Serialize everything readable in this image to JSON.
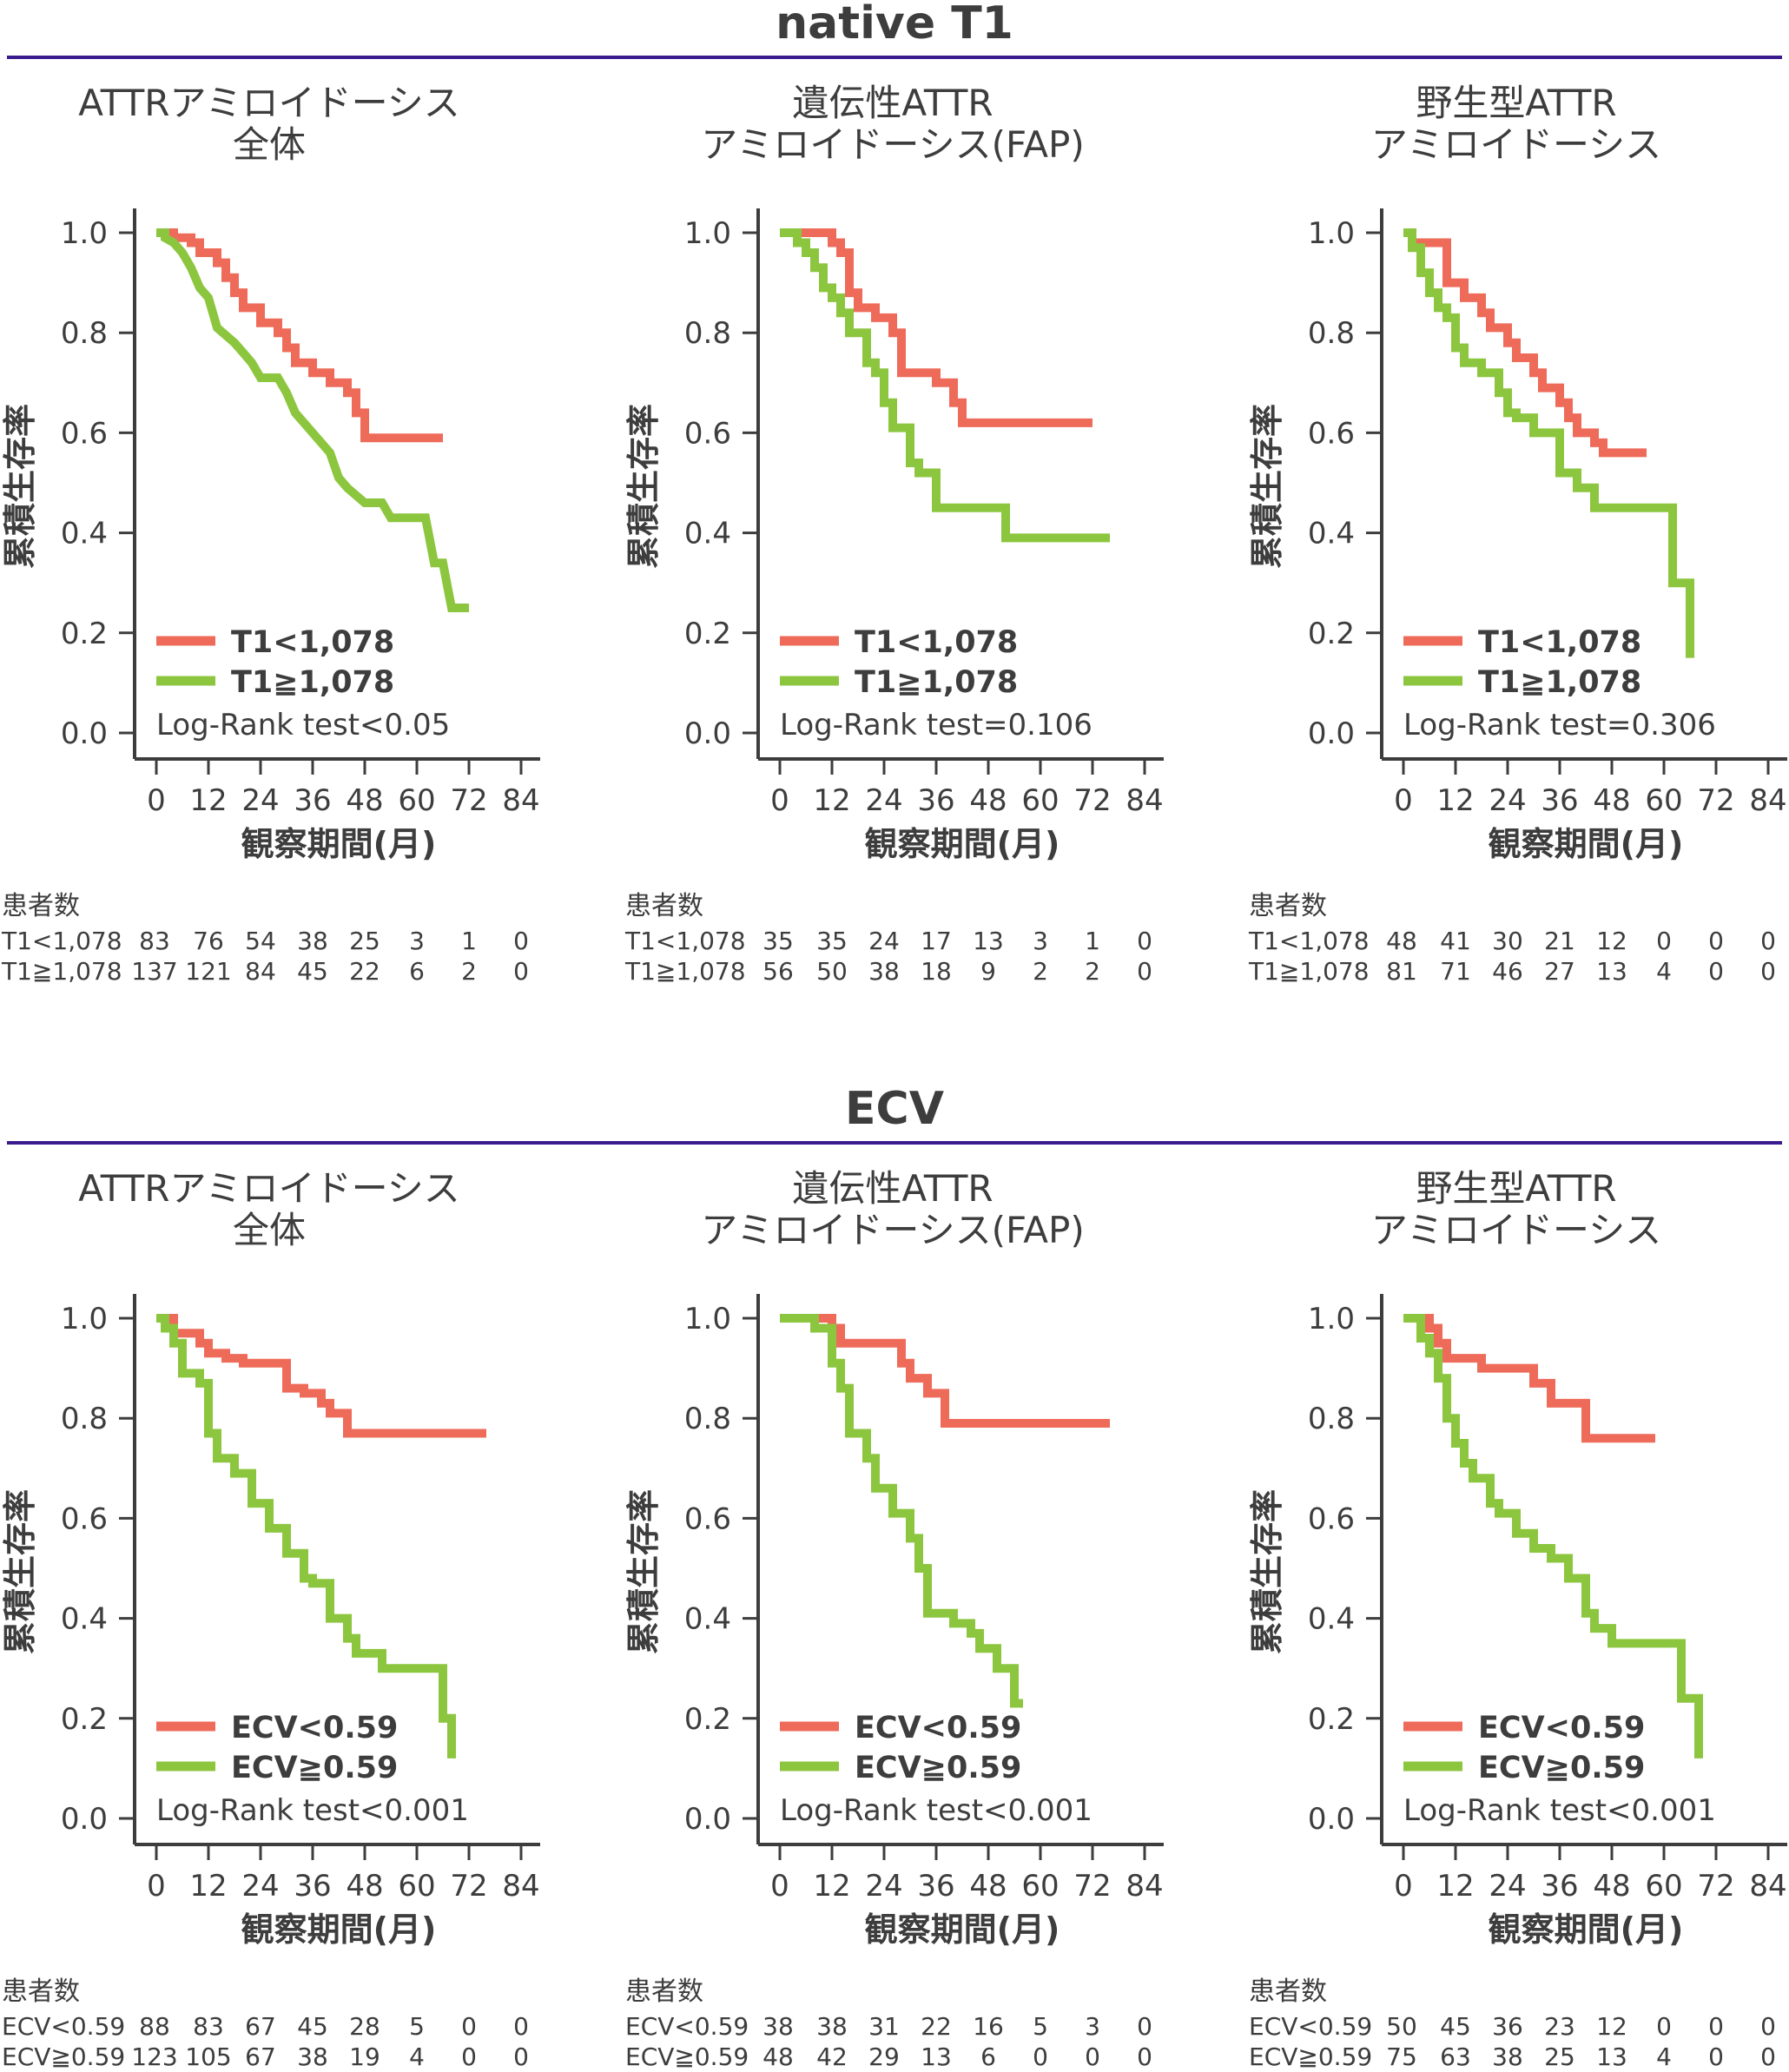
{
  "colors": {
    "red": "#ee6b5a",
    "green": "#8cc63f",
    "axis": "#3d3d3d",
    "rule": "#3a1a8c"
  },
  "x_ticks": [
    0,
    12,
    24,
    36,
    48,
    60,
    72,
    84
  ],
  "y_ticks": [
    "1.0",
    "0.8",
    "0.6",
    "0.4",
    "0.2",
    "0.0"
  ],
  "xlabel": "観察期間(月)",
  "ylabel": "累積生存率",
  "risk_header": "患者数",
  "sections": [
    {
      "title": "native T1",
      "legend": [
        "T1<1,078",
        "T1≧1,078"
      ],
      "risk_labels": [
        "T1<1,078",
        "T1≧1,078"
      ],
      "panels": [
        {
          "title_lines": [
            "ATTRアミロイドーシス",
            "全体"
          ],
          "logrank": "Log-Rank test<0.05",
          "risk": [
            [
              "83",
              "76",
              "54",
              "38",
              "25",
              "3",
              "1",
              "0"
            ],
            [
              "137",
              "121",
              "84",
              "45",
              "22",
              "6",
              "2",
              "0"
            ]
          ]
        },
        {
          "title_lines": [
            "遺伝性ATTR",
            "アミロイドーシス(FAP)"
          ],
          "logrank": "Log-Rank test=0.106",
          "risk": [
            [
              "35",
              "35",
              "24",
              "17",
              "13",
              "3",
              "1",
              "0"
            ],
            [
              "56",
              "50",
              "38",
              "18",
              "9",
              "2",
              "2",
              "0"
            ]
          ]
        },
        {
          "title_lines": [
            "野生型ATTR",
            "アミロイドーシス"
          ],
          "logrank": "Log-Rank test=0.306",
          "risk": [
            [
              "48",
              "41",
              "30",
              "21",
              "12",
              "0",
              "0",
              "0"
            ],
            [
              "81",
              "71",
              "46",
              "27",
              "13",
              "4",
              "0",
              "0"
            ]
          ]
        }
      ]
    },
    {
      "title": "ECV",
      "legend": [
        "ECV<0.59",
        "ECV≧0.59"
      ],
      "risk_labels": [
        "ECV<0.59",
        "ECV≧0.59"
      ],
      "panels": [
        {
          "title_lines": [
            "ATTRアミロイドーシス",
            "全体"
          ],
          "logrank": "Log-Rank test<0.001",
          "risk": [
            [
              "88",
              "83",
              "67",
              "45",
              "28",
              "5",
              "0",
              "0"
            ],
            [
              "123",
              "105",
              "67",
              "38",
              "19",
              "4",
              "0",
              "0"
            ]
          ]
        },
        {
          "title_lines": [
            "遺伝性ATTR",
            "アミロイドーシス(FAP)"
          ],
          "logrank": "Log-Rank test<0.001",
          "risk": [
            [
              "38",
              "38",
              "31",
              "22",
              "16",
              "5",
              "3",
              "0"
            ],
            [
              "48",
              "42",
              "29",
              "13",
              "6",
              "0",
              "0",
              "0"
            ]
          ]
        },
        {
          "title_lines": [
            "野生型ATTR",
            "アミロイドーシス"
          ],
          "logrank": "Log-Rank test<0.001",
          "risk": [
            [
              "50",
              "45",
              "36",
              "23",
              "12",
              "0",
              "0",
              "0"
            ],
            [
              "75",
              "63",
              "38",
              "25",
              "13",
              "4",
              "0",
              "0"
            ]
          ]
        }
      ]
    }
  ],
  "chart_data": [
    {
      "type": "line",
      "title": "ATTRアミロイドーシス 全体 (native T1)",
      "xlabel": "観察期間(月)",
      "ylabel": "累積生存率",
      "xlim": [
        0,
        84
      ],
      "ylim": [
        0,
        1
      ],
      "series": [
        {
          "name": "T1<1,078",
          "x": [
            0,
            4,
            4,
            8,
            8,
            10,
            10,
            14,
            14,
            16,
            16,
            18,
            18,
            20,
            20,
            24,
            24,
            28,
            28,
            30,
            30,
            32,
            32,
            36,
            36,
            40,
            40,
            44,
            44,
            46,
            46,
            48,
            48,
            52,
            52,
            60,
            60,
            66
          ],
          "y": [
            1.0,
            1.0,
            0.99,
            0.99,
            0.98,
            0.98,
            0.96,
            0.96,
            0.94,
            0.94,
            0.91,
            0.91,
            0.88,
            0.88,
            0.85,
            0.85,
            0.82,
            0.82,
            0.8,
            0.8,
            0.77,
            0.77,
            0.74,
            0.74,
            0.72,
            0.72,
            0.7,
            0.7,
            0.68,
            0.68,
            0.64,
            0.64,
            0.59,
            0.59,
            0.59,
            0.59,
            0.59,
            0.59
          ]
        },
        {
          "name": "T1≧1,078",
          "x": [
            0,
            2,
            2,
            4,
            6,
            8,
            10,
            12,
            14,
            18,
            20,
            22,
            24,
            28,
            30,
            32,
            34,
            36,
            38,
            40,
            42,
            44,
            48,
            50,
            52,
            54,
            58,
            60,
            62,
            64,
            66,
            68,
            72
          ],
          "y": [
            1.0,
            1.0,
            0.99,
            0.98,
            0.96,
            0.93,
            0.89,
            0.87,
            0.81,
            0.78,
            0.76,
            0.74,
            0.71,
            0.71,
            0.68,
            0.64,
            0.62,
            0.6,
            0.58,
            0.56,
            0.51,
            0.49,
            0.46,
            0.46,
            0.46,
            0.43,
            0.43,
            0.43,
            0.43,
            0.34,
            0.34,
            0.25,
            0.25
          ]
        }
      ]
    },
    {
      "type": "line",
      "title": "遺伝性ATTR アミロイドーシス(FAP) (native T1)",
      "xlabel": "観察期間(月)",
      "ylabel": "累積生存率",
      "xlim": [
        0,
        84
      ],
      "ylim": [
        0,
        1
      ],
      "series": [
        {
          "name": "T1<1,078",
          "x": [
            0,
            6,
            6,
            12,
            12,
            14,
            14,
            16,
            16,
            18,
            18,
            22,
            22,
            26,
            26,
            28,
            28,
            36,
            36,
            40,
            40,
            42,
            42,
            72
          ],
          "y": [
            1.0,
            1.0,
            1.0,
            1.0,
            0.98,
            0.98,
            0.96,
            0.96,
            0.88,
            0.88,
            0.85,
            0.85,
            0.83,
            0.83,
            0.8,
            0.8,
            0.72,
            0.72,
            0.7,
            0.7,
            0.66,
            0.66,
            0.62,
            0.62
          ]
        },
        {
          "name": "T1≧1,078",
          "x": [
            0,
            4,
            4,
            6,
            6,
            8,
            8,
            10,
            10,
            12,
            12,
            14,
            14,
            16,
            16,
            20,
            20,
            22,
            22,
            24,
            24,
            26,
            26,
            30,
            30,
            32,
            32,
            36,
            36,
            40,
            40,
            44,
            44,
            52,
            52,
            76
          ],
          "y": [
            1.0,
            1.0,
            0.98,
            0.98,
            0.96,
            0.96,
            0.93,
            0.93,
            0.89,
            0.89,
            0.87,
            0.87,
            0.84,
            0.84,
            0.8,
            0.8,
            0.74,
            0.74,
            0.72,
            0.72,
            0.66,
            0.66,
            0.61,
            0.61,
            0.54,
            0.54,
            0.52,
            0.52,
            0.45,
            0.45,
            0.45,
            0.45,
            0.45,
            0.45,
            0.39,
            0.39
          ]
        }
      ]
    },
    {
      "type": "line",
      "title": "野生型ATTR アミロイドーシス (native T1)",
      "xlabel": "観察期間(月)",
      "ylabel": "累積生存率",
      "xlim": [
        0,
        84
      ],
      "ylim": [
        0,
        1
      ],
      "series": [
        {
          "name": "T1<1,078",
          "x": [
            0,
            2,
            2,
            10,
            10,
            14,
            14,
            18,
            18,
            20,
            20,
            24,
            24,
            26,
            26,
            30,
            30,
            32,
            32,
            36,
            36,
            38,
            38,
            40,
            40,
            44,
            44,
            46,
            46,
            50,
            50,
            56
          ],
          "y": [
            1.0,
            1.0,
            0.98,
            0.98,
            0.9,
            0.9,
            0.87,
            0.87,
            0.84,
            0.84,
            0.81,
            0.81,
            0.78,
            0.78,
            0.75,
            0.75,
            0.72,
            0.72,
            0.69,
            0.69,
            0.66,
            0.66,
            0.63,
            0.63,
            0.6,
            0.6,
            0.58,
            0.58,
            0.56,
            0.56,
            0.56,
            0.56
          ]
        },
        {
          "name": "T1≧1,078",
          "x": [
            0,
            2,
            2,
            4,
            4,
            6,
            6,
            8,
            8,
            10,
            10,
            12,
            12,
            14,
            14,
            18,
            18,
            22,
            22,
            24,
            24,
            26,
            26,
            30,
            30,
            36,
            36,
            40,
            40,
            44,
            44,
            62,
            62,
            66,
            66
          ],
          "y": [
            1.0,
            1.0,
            0.97,
            0.97,
            0.92,
            0.92,
            0.88,
            0.88,
            0.85,
            0.85,
            0.83,
            0.83,
            0.77,
            0.77,
            0.74,
            0.74,
            0.72,
            0.72,
            0.68,
            0.68,
            0.64,
            0.64,
            0.63,
            0.63,
            0.6,
            0.6,
            0.52,
            0.52,
            0.49,
            0.49,
            0.45,
            0.45,
            0.3,
            0.3,
            0.15
          ]
        }
      ]
    },
    {
      "type": "line",
      "title": "ATTRアミロイドーシス 全体 (ECV)",
      "xlabel": "観察期間(月)",
      "ylabel": "累積生存率",
      "xlim": [
        0,
        84
      ],
      "ylim": [
        0,
        1
      ],
      "series": [
        {
          "name": "ECV<0.59",
          "x": [
            0,
            4,
            4,
            10,
            10,
            12,
            12,
            16,
            16,
            20,
            20,
            30,
            30,
            34,
            34,
            38,
            38,
            40,
            40,
            44,
            44,
            76
          ],
          "y": [
            1.0,
            1.0,
            0.97,
            0.97,
            0.95,
            0.95,
            0.93,
            0.93,
            0.92,
            0.92,
            0.91,
            0.91,
            0.86,
            0.86,
            0.85,
            0.85,
            0.83,
            0.83,
            0.81,
            0.81,
            0.77,
            0.77
          ]
        },
        {
          "name": "ECV≧0.59",
          "x": [
            0,
            2,
            2,
            4,
            4,
            6,
            6,
            10,
            10,
            12,
            12,
            14,
            14,
            18,
            18,
            22,
            22,
            26,
            26,
            30,
            30,
            34,
            34,
            36,
            36,
            40,
            40,
            44,
            44,
            46,
            46,
            52,
            52,
            58,
            58,
            66,
            66,
            68,
            68
          ],
          "y": [
            1.0,
            1.0,
            0.98,
            0.98,
            0.95,
            0.95,
            0.89,
            0.89,
            0.87,
            0.87,
            0.77,
            0.77,
            0.72,
            0.72,
            0.69,
            0.69,
            0.63,
            0.63,
            0.58,
            0.58,
            0.53,
            0.53,
            0.48,
            0.48,
            0.47,
            0.47,
            0.4,
            0.4,
            0.36,
            0.36,
            0.33,
            0.33,
            0.3,
            0.3,
            0.3,
            0.3,
            0.2,
            0.2,
            0.12
          ]
        }
      ]
    },
    {
      "type": "line",
      "title": "遺伝性ATTR アミロイドーシス(FAP) (ECV)",
      "xlabel": "観察期間(月)",
      "ylabel": "累積生存率",
      "xlim": [
        0,
        84
      ],
      "ylim": [
        0,
        1
      ],
      "series": [
        {
          "name": "ECV<0.59",
          "x": [
            0,
            12,
            12,
            14,
            14,
            28,
            28,
            30,
            30,
            34,
            34,
            38,
            38,
            40,
            40,
            76
          ],
          "y": [
            1.0,
            1.0,
            0.98,
            0.98,
            0.95,
            0.95,
            0.91,
            0.91,
            0.88,
            0.88,
            0.85,
            0.85,
            0.79,
            0.79,
            0.79,
            0.79
          ]
        },
        {
          "name": "ECV≧0.59",
          "x": [
            0,
            8,
            8,
            12,
            12,
            14,
            14,
            16,
            16,
            20,
            20,
            22,
            22,
            26,
            26,
            30,
            30,
            32,
            32,
            34,
            34,
            40,
            40,
            44,
            44,
            46,
            46,
            50,
            50,
            54,
            54,
            56
          ],
          "y": [
            1.0,
            1.0,
            0.98,
            0.98,
            0.91,
            0.91,
            0.86,
            0.86,
            0.77,
            0.77,
            0.72,
            0.72,
            0.66,
            0.66,
            0.61,
            0.61,
            0.56,
            0.56,
            0.5,
            0.5,
            0.41,
            0.41,
            0.39,
            0.39,
            0.37,
            0.37,
            0.34,
            0.34,
            0.3,
            0.3,
            0.23,
            0.23
          ]
        }
      ]
    },
    {
      "type": "line",
      "title": "野生型ATTR アミロイドーシス (ECV)",
      "xlabel": "観察期間(月)",
      "ylabel": "累積生存率",
      "xlim": [
        0,
        84
      ],
      "ylim": [
        0,
        1
      ],
      "series": [
        {
          "name": "ECV<0.59",
          "x": [
            0,
            6,
            6,
            8,
            8,
            10,
            10,
            18,
            18,
            30,
            30,
            34,
            34,
            42,
            42,
            48,
            48,
            58
          ],
          "y": [
            1.0,
            1.0,
            0.98,
            0.98,
            0.95,
            0.95,
            0.92,
            0.92,
            0.9,
            0.9,
            0.87,
            0.87,
            0.83,
            0.83,
            0.76,
            0.76,
            0.76,
            0.76
          ]
        },
        {
          "name": "ECV≧0.59",
          "x": [
            0,
            4,
            4,
            6,
            6,
            8,
            8,
            10,
            10,
            12,
            12,
            14,
            14,
            16,
            16,
            20,
            20,
            22,
            22,
            26,
            26,
            30,
            30,
            34,
            34,
            38,
            38,
            42,
            42,
            44,
            44,
            48,
            48,
            64,
            64,
            68,
            68
          ],
          "y": [
            1.0,
            1.0,
            0.96,
            0.96,
            0.93,
            0.93,
            0.88,
            0.88,
            0.8,
            0.8,
            0.75,
            0.75,
            0.71,
            0.71,
            0.68,
            0.68,
            0.63,
            0.63,
            0.61,
            0.61,
            0.57,
            0.57,
            0.54,
            0.54,
            0.52,
            0.52,
            0.48,
            0.48,
            0.41,
            0.41,
            0.38,
            0.38,
            0.35,
            0.35,
            0.24,
            0.24,
            0.12
          ]
        }
      ]
    }
  ]
}
